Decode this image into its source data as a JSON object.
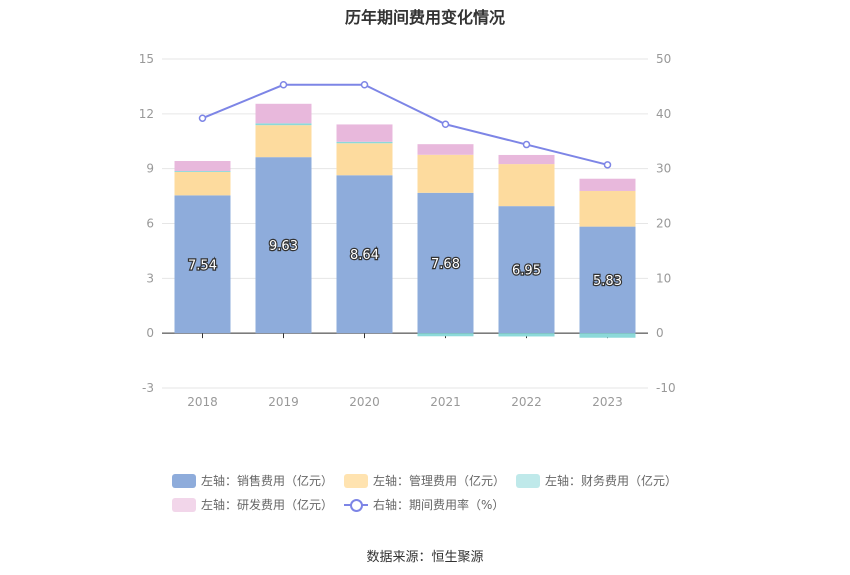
{
  "chart_data": {
    "type": "bar",
    "title": "历年期间费用变化情况",
    "categories": [
      "2018",
      "2019",
      "2020",
      "2021",
      "2022",
      "2023"
    ],
    "y_left": {
      "ticks": [
        "15",
        "12",
        "9",
        "6",
        "3",
        "0",
        "-3"
      ],
      "ylim": [
        -3,
        15
      ]
    },
    "y_right": {
      "ticks": [
        "50",
        "40",
        "30",
        "20",
        "10",
        "0",
        "-10"
      ],
      "ylim": [
        -10,
        50
      ]
    },
    "grid": true,
    "legend_placement": "bottom",
    "series": [
      {
        "name": "左轴：销售费用（亿元）",
        "kind": "stacked-bar",
        "axis": "left",
        "color": "#8eacdb",
        "values": [
          7.54,
          9.63,
          8.64,
          7.68,
          6.95,
          5.83
        ],
        "labels": [
          "7.54",
          "9.63",
          "8.64",
          "7.68",
          "6.95",
          "5.83"
        ]
      },
      {
        "name": "左轴：管理费用（亿元）",
        "kind": "stacked-bar",
        "axis": "left",
        "color": "#fddb9e",
        "values": [
          1.28,
          1.75,
          1.75,
          2.08,
          2.3,
          1.95
        ]
      },
      {
        "name": "左轴：财务费用（亿元）",
        "kind": "stacked-bar",
        "axis": "left",
        "color": "#8cd9d9",
        "values": [
          0.05,
          0.1,
          0.08,
          -0.17,
          -0.18,
          -0.25
        ]
      },
      {
        "name": "左轴：研发费用（亿元）",
        "kind": "stacked-bar",
        "axis": "left",
        "color": "#e8b8dc",
        "values": [
          0.55,
          1.07,
          0.95,
          0.58,
          0.5,
          0.67
        ]
      },
      {
        "name": "右轴：期间费用率（%）",
        "kind": "line",
        "axis": "right",
        "color": "#7d85e6",
        "values": [
          39.2,
          45.3,
          45.3,
          38.1,
          34.4,
          30.7
        ]
      }
    ]
  },
  "source": "数据来源：恒生聚源"
}
